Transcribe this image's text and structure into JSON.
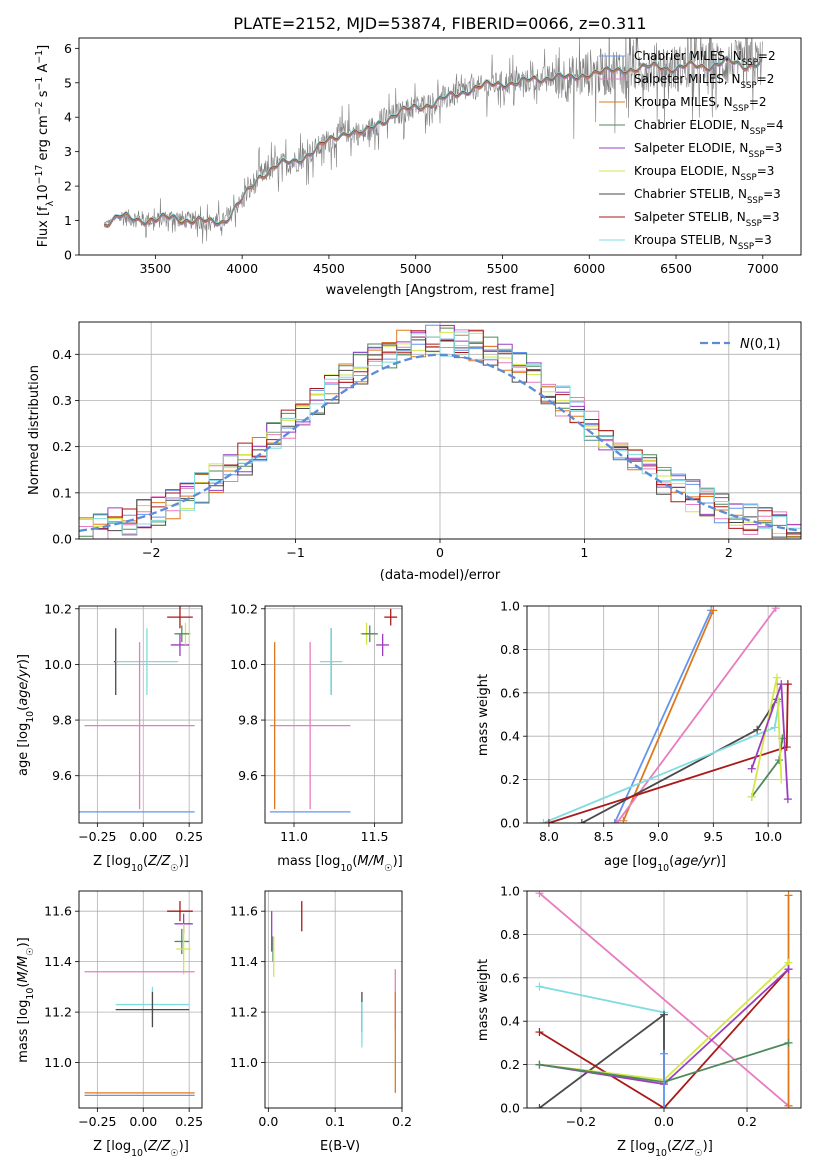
{
  "figure_title": "PLATE=2152, MJD=53874, FIBERID=0066, z=0.311",
  "colors": {
    "chabrier_miles": "#6495ED",
    "salpeter_miles": "#E87CC0",
    "kroupa_miles": "#E0781E",
    "chabrier_elodie": "#4E8A5A",
    "salpeter_elodie": "#9B3DC0",
    "kroupa_elodie": "#D6E64A",
    "chabrier_stelib": "#4A4A4A",
    "salpeter_stelib": "#AA1A1A",
    "kroupa_stelib": "#80DCE0",
    "data_spectrum": "#7F7F7F",
    "gaussian": "#5B8BD9",
    "grid": "#B0B0B0"
  },
  "chart_data": [
    {
      "id": "spectrum",
      "type": "line",
      "title": "PLATE=2152, MJD=53874, FIBERID=0066, z=0.311",
      "xlabel": "wavelength [Angstrom, rest frame]",
      "ylabel": "Flux [f_λ 10^-17 erg cm^-2 s^-1 A^-1]",
      "xlim": [
        3060,
        7220
      ],
      "ylim": [
        0,
        6.3
      ],
      "xticks": [
        3500,
        4000,
        4500,
        5000,
        5500,
        6000,
        6500,
        7000
      ],
      "yticks": [
        0,
        1,
        2,
        3,
        4,
        5,
        6
      ],
      "grid": false,
      "legend_position": "top-right",
      "data_x": [
        3200,
        3300,
        3400,
        3500,
        3600,
        3700,
        3800,
        3900,
        4000,
        4100,
        4200,
        4300,
        4400,
        4500,
        4600,
        4700,
        4800,
        4900,
        5000,
        5100,
        5200,
        5300,
        5400,
        5500,
        5600,
        5700,
        5800,
        5900,
        6000,
        6100,
        6200,
        6300,
        6400,
        6500,
        6600,
        6700,
        6800,
        6900,
        7000
      ],
      "data_y": [
        0.9,
        1.1,
        1.05,
        1.0,
        1.1,
        1.0,
        0.95,
        1.0,
        1.6,
        2.3,
        2.6,
        2.7,
        3.0,
        3.3,
        3.6,
        3.5,
        3.9,
        4.1,
        4.3,
        4.4,
        4.6,
        4.8,
        4.9,
        5.0,
        5.0,
        5.1,
        5.2,
        5.1,
        5.3,
        5.3,
        5.4,
        5.4,
        5.5,
        5.4,
        5.5,
        5.5,
        5.6,
        5.5,
        5.6
      ],
      "series": [
        {
          "name": "Chabrier MILES, N_SSP=2",
          "color_key": "chabrier_miles"
        },
        {
          "name": "Salpeter MILES, N_SSP=2",
          "color_key": "salpeter_miles"
        },
        {
          "name": "Kroupa MILES, N_SSP=2",
          "color_key": "kroupa_miles"
        },
        {
          "name": "Chabrier ELODIE, N_SSP=4",
          "color_key": "chabrier_elodie"
        },
        {
          "name": "Salpeter ELODIE, N_SSP=3",
          "color_key": "salpeter_elodie"
        },
        {
          "name": "Kroupa ELODIE, N_SSP=3",
          "color_key": "kroupa_elodie"
        },
        {
          "name": "Chabrier STELIB, N_SSP=3",
          "color_key": "chabrier_stelib"
        },
        {
          "name": "Salpeter STELIB, N_SSP=3",
          "color_key": "salpeter_stelib"
        },
        {
          "name": "Kroupa STELIB, N_SSP=3",
          "color_key": "kroupa_stelib"
        }
      ]
    },
    {
      "id": "residuals",
      "type": "area",
      "xlabel": "(data-model)/error",
      "ylabel": "Normed distribution",
      "xlim": [
        -2.5,
        2.5
      ],
      "ylim": [
        0,
        0.47
      ],
      "xticks": [
        -2,
        -1,
        0,
        1,
        2
      ],
      "yticks": [
        0.0,
        0.1,
        0.2,
        0.3,
        0.4
      ],
      "grid": true,
      "legend_position": "top-right",
      "gaussian_label": "N(0,1)",
      "bin_edges_start": -2.5,
      "bin_width": 0.1,
      "bin_count": 50
    },
    {
      "id": "age_vs_Z",
      "type": "scatter",
      "xlabel": "Z [log10(Z/Z☉)]",
      "ylabel": "age  [log10(age/yr)]",
      "xlim": [
        -0.35,
        0.32
      ],
      "ylim": [
        9.43,
        10.21
      ],
      "xticks": [
        -0.25,
        0.0,
        0.25
      ],
      "yticks": [
        9.6,
        9.8,
        10.0,
        10.2
      ],
      "grid": true,
      "points": [
        {
          "color_key": "salpeter_stelib",
          "x": 0.2,
          "y": 10.17,
          "xerr": 0.07,
          "yerr": 0.04
        },
        {
          "color_key": "salpeter_elodie",
          "x": 0.2,
          "y": 10.07,
          "xerr": 0.05,
          "yerr": 0.04
        },
        {
          "color_key": "kroupa_elodie",
          "x": 0.23,
          "y": 10.11,
          "xerr": 0.03,
          "yerr": 0.04
        },
        {
          "color_key": "chabrier_elodie",
          "x": 0.21,
          "y": 10.11,
          "xerr": 0.04,
          "yerr": 0.03
        },
        {
          "color_key": "chabrier_stelib",
          "x": -0.15,
          "y": 10.01,
          "xerr": 0.01,
          "yerr": 0.12
        },
        {
          "color_key": "kroupa_stelib",
          "x": 0.02,
          "y": 10.01,
          "xerr": 0.17,
          "yerr": 0.12
        },
        {
          "color_key": "salpeter_miles",
          "x": -0.02,
          "y": 9.78,
          "xerr": 0.3,
          "yerr": 0.3
        },
        {
          "color_key": "chabrier_miles",
          "x": -0.04,
          "y": 9.47,
          "xerr": 0.32,
          "yerr": 0.0
        },
        {
          "color_key": "kroupa_miles",
          "x": 0.28,
          "y": 9.47,
          "xerr": 0.0,
          "yerr": 0.0
        }
      ]
    },
    {
      "id": "age_vs_mass",
      "type": "scatter",
      "xlabel": "mass [log10(M/M☉)]",
      "ylabel": "",
      "xlim": [
        10.82,
        11.67
      ],
      "ylim": [
        9.43,
        10.21
      ],
      "xticks": [
        11.0,
        11.5
      ],
      "yticks": [
        9.6,
        9.8,
        10.0,
        10.2
      ],
      "grid": true,
      "points": [
        {
          "color_key": "salpeter_stelib",
          "x": 11.6,
          "y": 10.17,
          "xerr": 0.04,
          "yerr": 0.03
        },
        {
          "color_key": "salpeter_elodie",
          "x": 11.55,
          "y": 10.07,
          "xerr": 0.04,
          "yerr": 0.04
        },
        {
          "color_key": "kroupa_elodie",
          "x": 11.45,
          "y": 10.11,
          "xerr": 0.04,
          "yerr": 0.04
        },
        {
          "color_key": "chabrier_elodie",
          "x": 11.47,
          "y": 10.11,
          "xerr": 0.05,
          "yerr": 0.03
        },
        {
          "color_key": "chabrier_stelib",
          "x": 11.23,
          "y": 10.01,
          "xerr": 0.01,
          "yerr": 0.12
        },
        {
          "color_key": "kroupa_stelib",
          "x": 11.23,
          "y": 10.01,
          "xerr": 0.07,
          "yerr": 0.12
        },
        {
          "color_key": "salpeter_miles",
          "x": 11.1,
          "y": 9.78,
          "xerr": 0.25,
          "yerr": 0.3
        },
        {
          "color_key": "chabrier_miles",
          "x": 11.1,
          "y": 9.47,
          "xerr": 0.25,
          "yerr": 0.0
        },
        {
          "color_key": "kroupa_miles",
          "x": 10.88,
          "y": 9.78,
          "xerr": 0.0,
          "yerr": 0.3
        }
      ]
    },
    {
      "id": "weight_vs_age",
      "type": "line",
      "xlabel": "age  [log10(age/yr)]",
      "ylabel": "mass weight",
      "xlim": [
        7.8,
        10.3
      ],
      "ylim": [
        0,
        1.0
      ],
      "xticks": [
        8.0,
        8.5,
        9.0,
        9.5,
        10.0
      ],
      "yticks": [
        0.0,
        0.2,
        0.4,
        0.6,
        0.8,
        1.0
      ],
      "grid": true,
      "series": [
        {
          "color_key": "chabrier_miles",
          "x": [
            8.6,
            9.48
          ],
          "y": [
            0.0,
            0.98
          ]
        },
        {
          "color_key": "kroupa_miles",
          "x": [
            8.68,
            9.5
          ],
          "y": [
            0.01,
            0.98
          ]
        },
        {
          "color_key": "salpeter_miles",
          "x": [
            8.62,
            10.07
          ],
          "y": [
            0.0,
            0.99
          ]
        },
        {
          "color_key": "chabrier_stelib",
          "x": [
            8.3,
            9.9,
            10.08
          ],
          "y": [
            0.0,
            0.43,
            0.57
          ]
        },
        {
          "color_key": "kroupa_stelib",
          "x": [
            7.95,
            10.06,
            10.1
          ],
          "y": [
            0.0,
            0.44,
            0.56
          ]
        },
        {
          "color_key": "salpeter_stelib",
          "x": [
            8.0,
            10.17,
            10.18
          ],
          "y": [
            0.0,
            0.35,
            0.64
          ]
        },
        {
          "color_key": "chabrier_elodie",
          "x": [
            9.85,
            10.1,
            10.13
          ],
          "y": [
            0.12,
            0.29,
            0.39
          ]
        },
        {
          "color_key": "kroupa_elodie",
          "x": [
            9.85,
            10.08,
            10.12
          ],
          "y": [
            0.12,
            0.67,
            0.2
          ]
        },
        {
          "color_key": "salpeter_elodie",
          "x": [
            9.85,
            10.12,
            10.18
          ],
          "y": [
            0.25,
            0.64,
            0.11
          ]
        }
      ]
    },
    {
      "id": "mass_vs_Z",
      "type": "scatter",
      "xlabel": "Z [log10(Z/Z☉)]",
      "ylabel": "mass [log10(M/M☉)]",
      "xlim": [
        -0.35,
        0.32
      ],
      "ylim": [
        10.82,
        11.68
      ],
      "xticks": [
        -0.25,
        0.0,
        0.25
      ],
      "yticks": [
        11.0,
        11.2,
        11.4,
        11.6
      ],
      "grid": true,
      "points": [
        {
          "color_key": "salpeter_stelib",
          "x": 0.2,
          "y": 11.6,
          "xerr": 0.07,
          "yerr": 0.04
        },
        {
          "color_key": "salpeter_elodie",
          "x": 0.22,
          "y": 11.55,
          "xerr": 0.05,
          "yerr": 0.04
        },
        {
          "color_key": "chabrier_elodie",
          "x": 0.21,
          "y": 11.48,
          "xerr": 0.04,
          "yerr": 0.05
        },
        {
          "color_key": "kroupa_elodie",
          "x": 0.22,
          "y": 11.45,
          "xerr": 0.04,
          "yerr": 0.1
        },
        {
          "color_key": "salpeter_miles",
          "x": -0.02,
          "y": 11.36,
          "xerr": 0.3,
          "yerr": 0.0
        },
        {
          "color_key": "kroupa_stelib",
          "x": 0.05,
          "y": 11.23,
          "xerr": 0.2,
          "yerr": 0.07
        },
        {
          "color_key": "chabrier_stelib",
          "x": 0.05,
          "y": 11.21,
          "xerr": 0.2,
          "yerr": 0.07
        },
        {
          "color_key": "kroupa_miles",
          "x": -0.02,
          "y": 10.88,
          "xerr": 0.3,
          "yerr": 0.0
        },
        {
          "color_key": "chabrier_miles",
          "x": -0.02,
          "y": 10.87,
          "xerr": 0.3,
          "yerr": 0.0
        }
      ]
    },
    {
      "id": "mass_vs_ebv",
      "type": "scatter",
      "xlabel": "E(B-V)",
      "ylabel": "",
      "xlim": [
        -0.005,
        0.2
      ],
      "ylim": [
        10.82,
        11.68
      ],
      "xticks": [
        0.0,
        0.1,
        0.2
      ],
      "yticks": [
        11.0,
        11.2,
        11.4,
        11.6
      ],
      "grid": true,
      "points": [
        {
          "color_key": "salpeter_stelib",
          "x": 0.05,
          "y": 11.58,
          "xerr": 0.0,
          "yerr": 0.06
        },
        {
          "color_key": "salpeter_elodie",
          "x": 0.005,
          "y": 11.52,
          "xerr": 0.0,
          "yerr": 0.08
        },
        {
          "color_key": "chabrier_elodie",
          "x": 0.007,
          "y": 11.45,
          "xerr": 0.0,
          "yerr": 0.05
        },
        {
          "color_key": "kroupa_elodie",
          "x": 0.008,
          "y": 11.42,
          "xerr": 0.0,
          "yerr": 0.08
        },
        {
          "color_key": "chabrier_stelib",
          "x": 0.14,
          "y": 11.2,
          "xerr": 0.0,
          "yerr": 0.08
        },
        {
          "color_key": "kroupa_stelib",
          "x": 0.14,
          "y": 11.15,
          "xerr": 0.0,
          "yerr": 0.09
        },
        {
          "color_key": "salpeter_miles",
          "x": 0.19,
          "y": 11.25,
          "xerr": 0.0,
          "yerr": 0.12
        },
        {
          "color_key": "kroupa_miles",
          "x": 0.19,
          "y": 11.08,
          "xerr": 0.0,
          "yerr": 0.2
        }
      ]
    },
    {
      "id": "weight_vs_Z",
      "type": "line",
      "xlabel": "Z [log10(Z/Z☉)]",
      "ylabel": "mass weight",
      "xlim": [
        -0.33,
        0.33
      ],
      "ylim": [
        0,
        1.0
      ],
      "xticks": [
        -0.2,
        0.0,
        0.2
      ],
      "yticks": [
        0.0,
        0.2,
        0.4,
        0.6,
        0.8,
        1.0
      ],
      "grid": true,
      "series": [
        {
          "color_key": "salpeter_miles",
          "x": [
            -0.3,
            0.3
          ],
          "y": [
            0.99,
            0.01
          ]
        },
        {
          "color_key": "kroupa_miles",
          "x": [
            0.3,
            0.3
          ],
          "y": [
            0.01,
            0.98
          ]
        },
        {
          "color_key": "kroupa_stelib",
          "x": [
            -0.3,
            0.0,
            0.0
          ],
          "y": [
            0.56,
            0.44,
            0.0
          ]
        },
        {
          "color_key": "chabrier_stelib",
          "x": [
            -0.3,
            0.0,
            0.0
          ],
          "y": [
            0.0,
            0.43,
            0.13
          ]
        },
        {
          "color_key": "salpeter_stelib",
          "x": [
            -0.3,
            0.0,
            0.3
          ],
          "y": [
            0.35,
            0.0,
            0.64
          ]
        },
        {
          "color_key": "kroupa_elodie",
          "x": [
            -0.3,
            0.0,
            0.3
          ],
          "y": [
            0.2,
            0.13,
            0.67
          ]
        },
        {
          "color_key": "salpeter_elodie",
          "x": [
            -0.3,
            0.0,
            0.3
          ],
          "y": [
            0.2,
            0.11,
            0.64
          ]
        },
        {
          "color_key": "chabrier_elodie",
          "x": [
            -0.3,
            0.0,
            0.3
          ],
          "y": [
            0.2,
            0.12,
            0.3
          ]
        },
        {
          "color_key": "chabrier_miles",
          "x": [
            0.0,
            0.0
          ],
          "y": [
            0.0,
            0.25
          ]
        }
      ]
    }
  ]
}
